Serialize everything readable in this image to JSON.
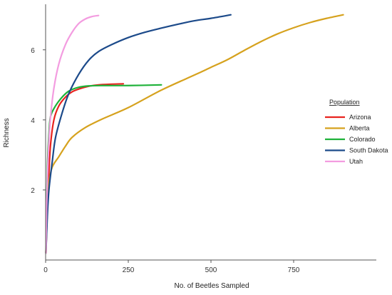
{
  "chart_data": {
    "type": "line",
    "title": "",
    "xlabel": "No. of Beetles Sampled",
    "ylabel": "Richness",
    "xlim": [
      0,
      1000
    ],
    "ylim": [
      0,
      7.3
    ],
    "xticks": [
      0,
      250,
      500,
      750
    ],
    "yticks": [
      2,
      4,
      6
    ],
    "grid": false,
    "legend": {
      "title": "Population",
      "placement": "right"
    },
    "series": [
      {
        "name": "Arizona",
        "color": "#e8231f",
        "points": [
          [
            1,
            0.2
          ],
          [
            5,
            1.4
          ],
          [
            10,
            2.5
          ],
          [
            15,
            3.3
          ],
          [
            25,
            4.0
          ],
          [
            40,
            4.4
          ],
          [
            60,
            4.65
          ],
          [
            80,
            4.8
          ],
          [
            100,
            4.88
          ],
          [
            130,
            4.96
          ],
          [
            160,
            5.0
          ],
          [
            200,
            5.02
          ],
          [
            235,
            5.03
          ]
        ]
      },
      {
        "name": "Alberta",
        "color": "#d6a21e",
        "points": [
          [
            1,
            0.2
          ],
          [
            5,
            1.5
          ],
          [
            10,
            2.2
          ],
          [
            20,
            2.65
          ],
          [
            40,
            2.95
          ],
          [
            60,
            3.25
          ],
          [
            80,
            3.5
          ],
          [
            120,
            3.78
          ],
          [
            170,
            4.02
          ],
          [
            250,
            4.35
          ],
          [
            350,
            4.85
          ],
          [
            450,
            5.28
          ],
          [
            500,
            5.5
          ],
          [
            550,
            5.72
          ],
          [
            600,
            5.98
          ],
          [
            650,
            6.23
          ],
          [
            700,
            6.45
          ],
          [
            750,
            6.63
          ],
          [
            800,
            6.78
          ],
          [
            850,
            6.9
          ],
          [
            900,
            7.0
          ]
        ]
      },
      {
        "name": "Colorado",
        "color": "#1fb23a",
        "points": [
          [
            1,
            0.2
          ],
          [
            3,
            1.6
          ],
          [
            6,
            2.8
          ],
          [
            10,
            3.6
          ],
          [
            15,
            4.1
          ],
          [
            30,
            4.4
          ],
          [
            50,
            4.65
          ],
          [
            70,
            4.82
          ],
          [
            100,
            4.93
          ],
          [
            130,
            4.97
          ],
          [
            170,
            4.98
          ],
          [
            250,
            4.98
          ],
          [
            350,
            5.0
          ]
        ]
      },
      {
        "name": "South Dakota",
        "color": "#1c4a8a",
        "points": [
          [
            1,
            0.2
          ],
          [
            5,
            1.2
          ],
          [
            10,
            2.0
          ],
          [
            20,
            2.8
          ],
          [
            30,
            3.5
          ],
          [
            50,
            4.2
          ],
          [
            70,
            4.75
          ],
          [
            100,
            5.3
          ],
          [
            130,
            5.7
          ],
          [
            160,
            5.95
          ],
          [
            200,
            6.15
          ],
          [
            250,
            6.35
          ],
          [
            300,
            6.5
          ],
          [
            350,
            6.62
          ],
          [
            400,
            6.73
          ],
          [
            450,
            6.83
          ],
          [
            500,
            6.9
          ],
          [
            560,
            7.0
          ]
        ]
      },
      {
        "name": "Utah",
        "color": "#f39ce0",
        "points": [
          [
            1,
            0.2
          ],
          [
            3,
            1.5
          ],
          [
            6,
            2.5
          ],
          [
            10,
            3.4
          ],
          [
            15,
            4.1
          ],
          [
            25,
            4.9
          ],
          [
            40,
            5.6
          ],
          [
            60,
            6.15
          ],
          [
            80,
            6.5
          ],
          [
            100,
            6.75
          ],
          [
            120,
            6.88
          ],
          [
            140,
            6.95
          ],
          [
            160,
            6.98
          ]
        ]
      }
    ]
  }
}
